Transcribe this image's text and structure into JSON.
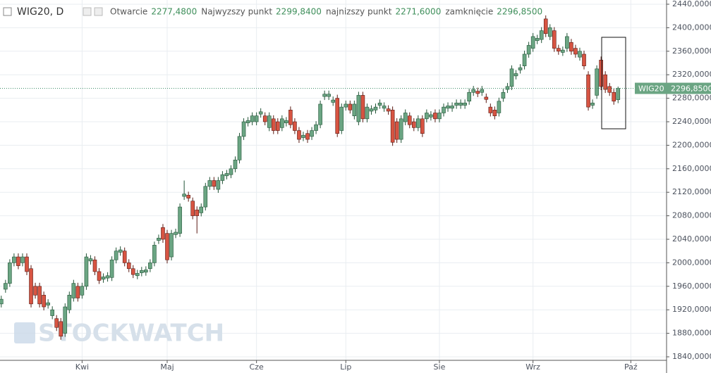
{
  "chart_data": {
    "type": "candlestick",
    "symbol": "WIG20, D",
    "legend_fields": [
      {
        "name": "Otwarcie",
        "value_label": "2277,4800"
      },
      {
        "name": "Najwyzszy punkt",
        "value_label": "2299,8400"
      },
      {
        "name": "najnizszy punkt",
        "value_label": "2271,6000"
      },
      {
        "name": "zamknięcie",
        "value_label": "2296,8500"
      }
    ],
    "last_price_label": {
      "name": "WIG20",
      "value_label": "2296,8500"
    },
    "watermark": "STOCKWATCH",
    "up_color": "#6ba583",
    "down_color": "#d75442",
    "grid": true,
    "xlim": [
      -0.3,
      156.4
    ],
    "xticks": [
      {
        "value": 19,
        "label": "Kwi"
      },
      {
        "value": 39,
        "label": "Maj"
      },
      {
        "value": 60,
        "label": "Cze"
      },
      {
        "value": 81,
        "label": "Lip"
      },
      {
        "value": 103,
        "label": "Sie"
      },
      {
        "value": 125,
        "label": "Wrz"
      },
      {
        "value": 148,
        "label": "Paź"
      }
    ],
    "ylim": [
      1840,
      2440
    ],
    "yticks": [
      {
        "value": 1840,
        "label": "1840,0000"
      },
      {
        "value": 1880,
        "label": "1880,0000"
      },
      {
        "value": 1920,
        "label": "1920,0000"
      },
      {
        "value": 1960,
        "label": "1960,0000"
      },
      {
        "value": 2000,
        "label": "2000,0000"
      },
      {
        "value": 2040,
        "label": "2040,0000"
      },
      {
        "value": 2080,
        "label": "2080,0000"
      },
      {
        "value": 2120,
        "label": "2120,0000"
      },
      {
        "value": 2160,
        "label": "2160,0000"
      },
      {
        "value": 2200,
        "label": "2200,0000"
      },
      {
        "value": 2240,
        "label": "2240,0000"
      },
      {
        "value": 2280,
        "label": "2280,0000"
      },
      {
        "value": 2320,
        "label": "2320,0000"
      },
      {
        "value": 2360,
        "label": "2360,0000"
      },
      {
        "value": 2400,
        "label": "2400,0000"
      },
      {
        "value": 2440,
        "label": "2440,0000"
      }
    ],
    "open": [
      1930,
      1955,
      1965,
      2000,
      2010,
      2000,
      2010,
      1990,
      1960,
      1960,
      1945,
      1928,
      1910,
      1905,
      1900,
      1880,
      1920,
      1940,
      1960,
      1945,
      1960,
      2003,
      2005,
      1985,
      1972,
      1974,
      1975,
      2005,
      2018,
      2020,
      2000,
      1990,
      1978,
      1983,
      1984,
      1990,
      2000,
      2038,
      2060,
      2050,
      2010,
      2048,
      2050,
      2113,
      2115,
      2105,
      2090,
      2085,
      2095,
      2130,
      2140,
      2125,
      2140,
      2148,
      2150,
      2160,
      2175,
      2215,
      2238,
      2240,
      2240,
      2253,
      2250,
      2230,
      2245,
      2240,
      2230,
      2238,
      2260,
      2240,
      2225,
      2213,
      2220,
      2215,
      2225,
      2235,
      2283,
      2283,
      2273,
      2280,
      2225,
      2265,
      2270,
      2250,
      2240,
      2285,
      2245,
      2258,
      2260,
      2268,
      2263,
      2262,
      2260,
      2240,
      2210,
      2240,
      2250,
      2240,
      2230,
      2245,
      2245,
      2248,
      2255,
      2245,
      2255,
      2263,
      2263,
      2268,
      2268,
      2268,
      2275,
      2290,
      2292,
      2290,
      2282,
      2265,
      2260,
      2255,
      2280,
      2295,
      2300,
      2318,
      2328,
      2335,
      2355,
      2365,
      2378,
      2380,
      2415,
      2385,
      2395,
      2365,
      2358,
      2365,
      2375,
      2365,
      2350,
      2355,
      2320,
      2268,
      2285,
      2345,
      2320,
      2300,
      2290,
      2277.48
    ],
    "high": [
      1944,
      1971,
      2006,
      2016,
      2016,
      2016,
      2016,
      1996,
      1966,
      1966,
      1951,
      1938,
      1926,
      1911,
      1906,
      1931,
      1951,
      1971,
      1966,
      1966,
      2016,
      2013,
      2011,
      1991,
      1982,
      1984,
      2011,
      2026,
      2028,
      2026,
      2006,
      1996,
      1988,
      1993,
      1994,
      2006,
      2036,
      2048,
      2066,
      2056,
      2056,
      2058,
      2101,
      2140,
      2121,
      2111,
      2096,
      2101,
      2136,
      2146,
      2146,
      2146,
      2156,
      2158,
      2166,
      2181,
      2221,
      2246,
      2248,
      2256,
      2256,
      2263,
      2256,
      2256,
      2251,
      2246,
      2251,
      2248,
      2266,
      2246,
      2231,
      2223,
      2226,
      2231,
      2241,
      2276,
      2293,
      2293,
      2283,
      2286,
      2271,
      2276,
      2276,
      2276,
      2291,
      2291,
      2271,
      2268,
      2271,
      2278,
      2273,
      2268,
      2266,
      2246,
      2251,
      2261,
      2256,
      2246,
      2251,
      2251,
      2261,
      2258,
      2261,
      2261,
      2271,
      2273,
      2273,
      2278,
      2278,
      2278,
      2296,
      2301,
      2298,
      2301,
      2288,
      2271,
      2266,
      2281,
      2296,
      2306,
      2336,
      2328,
      2338,
      2361,
      2376,
      2391,
      2388,
      2401,
      2421,
      2406,
      2401,
      2371,
      2368,
      2391,
      2381,
      2371,
      2366,
      2361,
      2326,
      2278,
      2336,
      2351,
      2326,
      2306,
      2296,
      2299.84
    ],
    "low": [
      1924,
      1949,
      1959,
      1994,
      1989,
      1994,
      1979,
      1924,
      1939,
      1924,
      1919,
      1922,
      1904,
      1884,
      1869,
      1874,
      1914,
      1934,
      1934,
      1939,
      1954,
      1997,
      1979,
      1964,
      1966,
      1968,
      1969,
      1999,
      2012,
      1994,
      1984,
      1974,
      1972,
      1977,
      1978,
      1984,
      1994,
      2032,
      2034,
      1999,
      2004,
      2042,
      2044,
      2107,
      2104,
      2074,
      2050,
      2079,
      2089,
      2124,
      2124,
      2119,
      2134,
      2142,
      2144,
      2154,
      2169,
      2209,
      2232,
      2234,
      2234,
      2247,
      2234,
      2224,
      2219,
      2219,
      2224,
      2232,
      2229,
      2219,
      2204,
      2207,
      2204,
      2209,
      2219,
      2229,
      2277,
      2277,
      2267,
      2214,
      2219,
      2259,
      2254,
      2244,
      2234,
      2239,
      2239,
      2252,
      2254,
      2262,
      2257,
      2252,
      2199,
      2204,
      2204,
      2234,
      2229,
      2224,
      2224,
      2214,
      2239,
      2242,
      2239,
      2239,
      2249,
      2257,
      2257,
      2262,
      2262,
      2262,
      2269,
      2284,
      2282,
      2284,
      2272,
      2249,
      2244,
      2249,
      2274,
      2289,
      2294,
      2312,
      2322,
      2329,
      2349,
      2359,
      2372,
      2374,
      2384,
      2379,
      2359,
      2354,
      2352,
      2359,
      2354,
      2349,
      2344,
      2329,
      2259,
      2262,
      2279,
      2294,
      2289,
      2284,
      2269,
      2271.6
    ],
    "close": [
      1938,
      1965,
      2000,
      2010,
      1995,
      2010,
      1985,
      1930,
      1945,
      1930,
      1925,
      1932,
      1920,
      1890,
      1875,
      1925,
      1945,
      1965,
      1940,
      1960,
      2010,
      2007,
      1985,
      1970,
      1976,
      1978,
      2005,
      2020,
      2022,
      2000,
      1990,
      1980,
      1982,
      1987,
      1988,
      2000,
      2030,
      2042,
      2040,
      2005,
      2050,
      2052,
      2095,
      2117,
      2110,
      2080,
      2080,
      2095,
      2130,
      2140,
      2130,
      2140,
      2150,
      2152,
      2160,
      2175,
      2215,
      2240,
      2242,
      2250,
      2250,
      2257,
      2240,
      2250,
      2225,
      2225,
      2245,
      2242,
      2235,
      2225,
      2210,
      2217,
      2210,
      2225,
      2235,
      2270,
      2287,
      2287,
      2277,
      2220,
      2265,
      2270,
      2260,
      2270,
      2285,
      2245,
      2265,
      2262,
      2265,
      2272,
      2267,
      2258,
      2205,
      2210,
      2245,
      2255,
      2235,
      2230,
      2245,
      2220,
      2255,
      2252,
      2245,
      2255,
      2265,
      2267,
      2267,
      2272,
      2272,
      2272,
      2290,
      2295,
      2288,
      2295,
      2278,
      2255,
      2250,
      2275,
      2290,
      2300,
      2330,
      2322,
      2332,
      2355,
      2370,
      2385,
      2382,
      2395,
      2390,
      2400,
      2365,
      2360,
      2362,
      2385,
      2360,
      2355,
      2360,
      2335,
      2265,
      2272,
      2330,
      2300,
      2295,
      2290,
      2275,
      2296.85
    ]
  }
}
